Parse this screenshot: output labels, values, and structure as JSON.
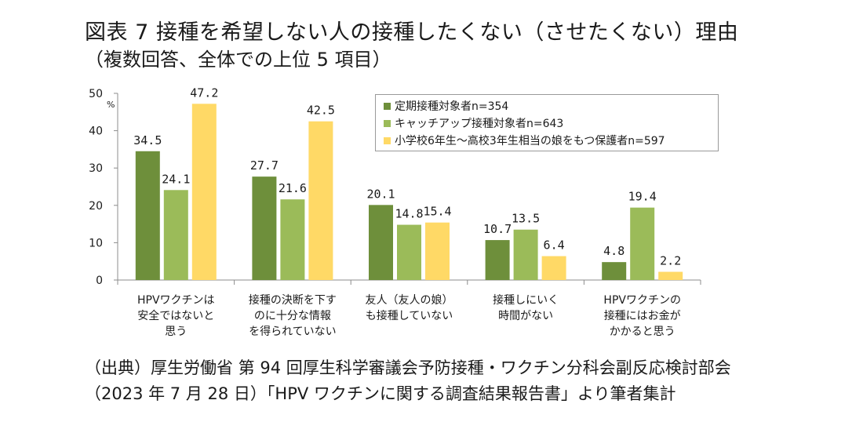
{
  "title": "図表 7 接種を希望しない人の接種したくない（させたくない）理由",
  "subtitle": "（複数回答、全体での上位 5 項目）",
  "source": {
    "line1": "（出典）厚生労働省 第 94 回厚生科学審議会予防接種・ワクチン分科会副反応検討部会",
    "line2": "（2023 年 7 月 28 日）「HPV ワクチンに関する調査結果報告書」より筆者集計"
  },
  "colors": {
    "series1": "#6e8f3b",
    "series2": "#9bbb59",
    "series3": "#ffd966"
  },
  "chart_data": {
    "type": "bar",
    "ylabel": "%",
    "ylim": [
      0,
      50
    ],
    "yticks": [
      0,
      10,
      20,
      30,
      40,
      50
    ],
    "grid": false,
    "legend_position": "top-right",
    "categories": [
      [
        "HPVワクチンは",
        "安全ではないと",
        "思う"
      ],
      [
        "接種の決断を下す",
        "のに十分な情報",
        "を得られていない"
      ],
      [
        "友人（友人の娘）",
        "も接種していない"
      ],
      [
        "接種しにいく",
        "時間がない"
      ],
      [
        "HPVワクチンの",
        "接種にはお金が",
        "かかると思う"
      ]
    ],
    "series": [
      {
        "name": "定期接種対象者n=354",
        "values": [
          34.5,
          27.7,
          20.1,
          10.7,
          4.8
        ],
        "labels": [
          "34.5",
          "27.7",
          "20.1",
          "10.7",
          "4.8"
        ]
      },
      {
        "name": "キャッチアップ接種対象者n=643",
        "values": [
          24.1,
          21.6,
          14.8,
          13.5,
          19.4
        ],
        "labels": [
          "24.1",
          "21.6",
          "14.8",
          "13.5",
          "19.4"
        ]
      },
      {
        "name": "小学校6年生～高校3年生相当の娘をもつ保護者n=597",
        "values": [
          47.2,
          42.5,
          15.4,
          6.4,
          2.2
        ],
        "labels": [
          "47.2",
          "42.5",
          "15.4",
          "6.4",
          "2.2"
        ]
      }
    ]
  }
}
